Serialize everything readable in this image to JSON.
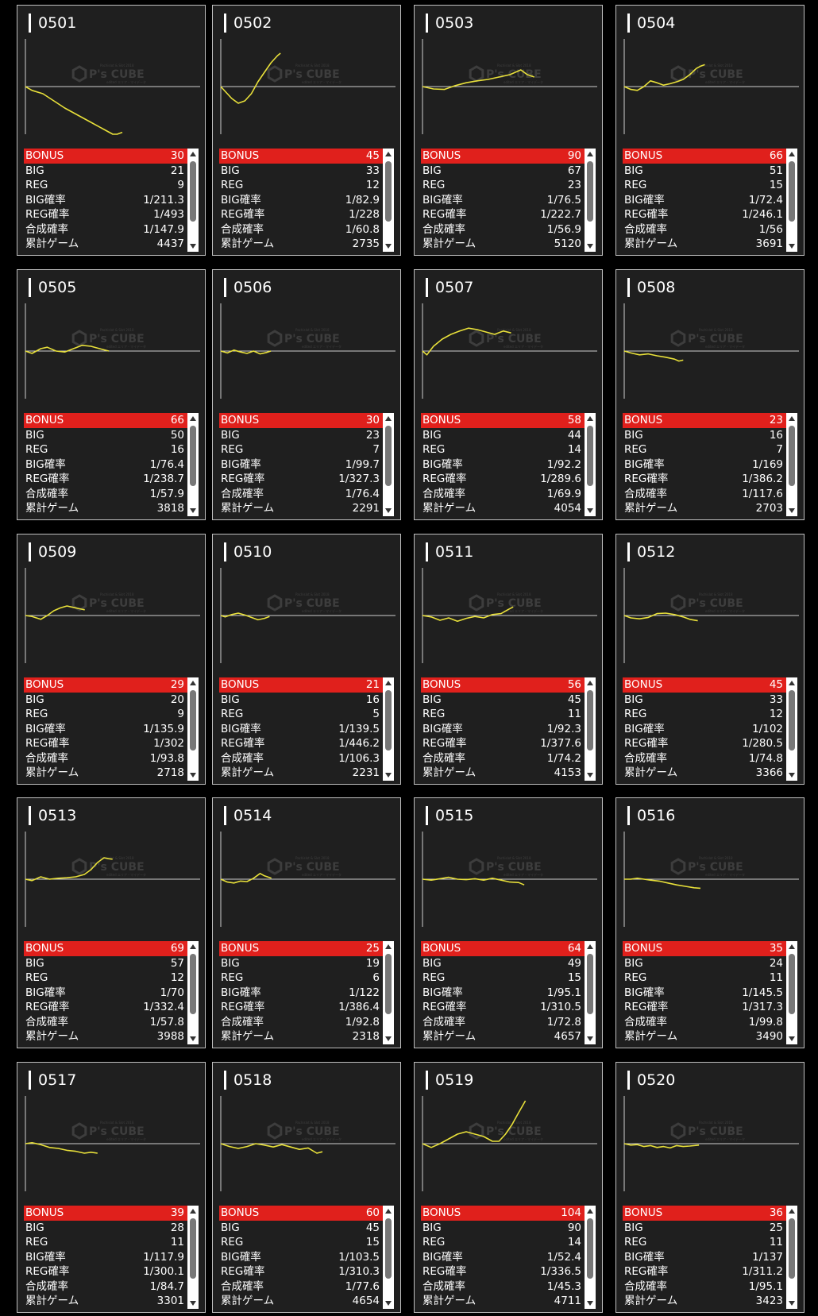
{
  "labels": {
    "bonus": "BONUS",
    "big": "BIG",
    "reg": "REG",
    "big_rate": "BIG確率",
    "reg_rate": "REG確率",
    "combined_rate": "合成確率",
    "total_games": "累計ゲーム"
  },
  "watermark": {
    "brand": "P's CUBE",
    "small_top": "Pachislot & Slot 2018",
    "small_bottom": "edited エリア・マイデータ"
  },
  "colors": {
    "bonus_bar": "#e0201c",
    "graph_line": "#e8e03a",
    "card_bg": "#1f1f1f"
  },
  "machines": [
    {
      "id": "0501",
      "bonus": "30",
      "big": "21",
      "reg": "9",
      "big_rate": "1/211.3",
      "reg_rate": "1/493",
      "combined_rate": "1/147.9",
      "total_games": "4437",
      "graph": [
        [
          0,
          0
        ],
        [
          300,
          -80
        ],
        [
          800,
          -150
        ],
        [
          1300,
          -300
        ],
        [
          1800,
          -450
        ],
        [
          2400,
          -600
        ],
        [
          3000,
          -750
        ],
        [
          3600,
          -900
        ],
        [
          4000,
          -1050
        ],
        [
          4200,
          -1000
        ],
        [
          4437,
          -960
        ]
      ]
    },
    {
      "id": "0502",
      "bonus": "45",
      "big": "33",
      "reg": "12",
      "big_rate": "1/82.9",
      "reg_rate": "1/228",
      "combined_rate": "1/60.8",
      "total_games": "2735",
      "graph": [
        [
          0,
          0
        ],
        [
          200,
          -100
        ],
        [
          500,
          -250
        ],
        [
          800,
          -350
        ],
        [
          1100,
          -300
        ],
        [
          1400,
          -150
        ],
        [
          1700,
          100
        ],
        [
          2000,
          300
        ],
        [
          2300,
          500
        ],
        [
          2600,
          650
        ],
        [
          2735,
          700
        ]
      ]
    },
    {
      "id": "0503",
      "bonus": "90",
      "big": "67",
      "reg": "23",
      "big_rate": "1/76.5",
      "reg_rate": "1/222.7",
      "combined_rate": "1/56.9",
      "total_games": "5120",
      "graph": [
        [
          0,
          0
        ],
        [
          500,
          -50
        ],
        [
          1000,
          -60
        ],
        [
          1500,
          20
        ],
        [
          2000,
          80
        ],
        [
          2500,
          120
        ],
        [
          3000,
          150
        ],
        [
          3500,
          200
        ],
        [
          4000,
          250
        ],
        [
          4500,
          350
        ],
        [
          4800,
          250
        ],
        [
          5120,
          200
        ]
      ]
    },
    {
      "id": "0504",
      "bonus": "66",
      "big": "51",
      "reg": "15",
      "big_rate": "1/72.4",
      "reg_rate": "1/246.1",
      "combined_rate": "1/56",
      "total_games": "3691",
      "graph": [
        [
          0,
          0
        ],
        [
          300,
          -60
        ],
        [
          600,
          -80
        ],
        [
          900,
          0
        ],
        [
          1200,
          120
        ],
        [
          1500,
          80
        ],
        [
          1800,
          30
        ],
        [
          2100,
          60
        ],
        [
          2400,
          100
        ],
        [
          2700,
          150
        ],
        [
          3000,
          250
        ],
        [
          3300,
          380
        ],
        [
          3500,
          430
        ],
        [
          3691,
          460
        ]
      ]
    },
    {
      "id": "0505",
      "bonus": "66",
      "big": "50",
      "reg": "16",
      "big_rate": "1/76.4",
      "reg_rate": "1/238.7",
      "combined_rate": "1/57.9",
      "total_games": "3818",
      "graph": [
        [
          0,
          0
        ],
        [
          300,
          -50
        ],
        [
          700,
          50
        ],
        [
          1000,
          80
        ],
        [
          1400,
          0
        ],
        [
          1800,
          -20
        ],
        [
          2200,
          50
        ],
        [
          2600,
          120
        ],
        [
          3000,
          100
        ],
        [
          3400,
          50
        ],
        [
          3818,
          0
        ]
      ]
    },
    {
      "id": "0506",
      "bonus": "30",
      "big": "23",
      "reg": "7",
      "big_rate": "1/99.7",
      "reg_rate": "1/327.3",
      "combined_rate": "1/76.4",
      "total_games": "2291",
      "graph": [
        [
          0,
          0
        ],
        [
          300,
          -40
        ],
        [
          600,
          20
        ],
        [
          900,
          -20
        ],
        [
          1200,
          -50
        ],
        [
          1500,
          0
        ],
        [
          1800,
          -60
        ],
        [
          2100,
          -30
        ],
        [
          2291,
          0
        ]
      ]
    },
    {
      "id": "0507",
      "bonus": "58",
      "big": "44",
      "reg": "14",
      "big_rate": "1/92.2",
      "reg_rate": "1/289.6",
      "combined_rate": "1/69.9",
      "total_games": "4054",
      "graph": [
        [
          0,
          0
        ],
        [
          200,
          -80
        ],
        [
          500,
          100
        ],
        [
          900,
          250
        ],
        [
          1300,
          350
        ],
        [
          1700,
          420
        ],
        [
          2100,
          480
        ],
        [
          2500,
          450
        ],
        [
          2900,
          400
        ],
        [
          3300,
          350
        ],
        [
          3700,
          420
        ],
        [
          4054,
          380
        ]
      ]
    },
    {
      "id": "0508",
      "bonus": "23",
      "big": "16",
      "reg": "7",
      "big_rate": "1/169",
      "reg_rate": "1/386.2",
      "combined_rate": "1/117.6",
      "total_games": "2703",
      "graph": [
        [
          0,
          0
        ],
        [
          300,
          -40
        ],
        [
          700,
          -80
        ],
        [
          1100,
          -60
        ],
        [
          1500,
          -100
        ],
        [
          1900,
          -130
        ],
        [
          2300,
          -170
        ],
        [
          2500,
          -210
        ],
        [
          2703,
          -190
        ]
      ]
    },
    {
      "id": "0509",
      "bonus": "29",
      "big": "20",
      "reg": "9",
      "big_rate": "1/135.9",
      "reg_rate": "1/302",
      "combined_rate": "1/93.8",
      "total_games": "2718",
      "graph": [
        [
          0,
          0
        ],
        [
          300,
          -20
        ],
        [
          700,
          -80
        ],
        [
          1000,
          0
        ],
        [
          1300,
          100
        ],
        [
          1600,
          160
        ],
        [
          1900,
          200
        ],
        [
          2200,
          170
        ],
        [
          2500,
          140
        ],
        [
          2718,
          120
        ]
      ]
    },
    {
      "id": "0510",
      "bonus": "21",
      "big": "16",
      "reg": "5",
      "big_rate": "1/139.5",
      "reg_rate": "1/446.2",
      "combined_rate": "1/106.3",
      "total_games": "2231",
      "graph": [
        [
          0,
          0
        ],
        [
          200,
          -30
        ],
        [
          500,
          20
        ],
        [
          800,
          50
        ],
        [
          1100,
          10
        ],
        [
          1400,
          -40
        ],
        [
          1700,
          -90
        ],
        [
          2000,
          -60
        ],
        [
          2231,
          -20
        ]
      ]
    },
    {
      "id": "0511",
      "bonus": "56",
      "big": "45",
      "reg": "11",
      "big_rate": "1/92.3",
      "reg_rate": "1/377.6",
      "combined_rate": "1/74.2",
      "total_games": "4153",
      "graph": [
        [
          0,
          0
        ],
        [
          400,
          -30
        ],
        [
          800,
          -100
        ],
        [
          1200,
          -50
        ],
        [
          1600,
          -120
        ],
        [
          2000,
          -60
        ],
        [
          2400,
          -20
        ],
        [
          2800,
          -50
        ],
        [
          3200,
          20
        ],
        [
          3600,
          40
        ],
        [
          3900,
          120
        ],
        [
          4153,
          180
        ]
      ]
    },
    {
      "id": "0512",
      "bonus": "45",
      "big": "33",
      "reg": "12",
      "big_rate": "1/102",
      "reg_rate": "1/280.5",
      "combined_rate": "1/74.8",
      "total_games": "3366",
      "graph": [
        [
          0,
          0
        ],
        [
          300,
          -50
        ],
        [
          700,
          -70
        ],
        [
          1100,
          -40
        ],
        [
          1500,
          40
        ],
        [
          1900,
          50
        ],
        [
          2300,
          20
        ],
        [
          2700,
          -30
        ],
        [
          3000,
          -80
        ],
        [
          3366,
          -110
        ]
      ]
    },
    {
      "id": "0513",
      "bonus": "69",
      "big": "57",
      "reg": "12",
      "big_rate": "1/70",
      "reg_rate": "1/332.4",
      "combined_rate": "1/57.8",
      "total_games": "3988",
      "graph": [
        [
          0,
          0
        ],
        [
          300,
          -30
        ],
        [
          700,
          50
        ],
        [
          1100,
          0
        ],
        [
          1500,
          20
        ],
        [
          1900,
          30
        ],
        [
          2300,
          50
        ],
        [
          2700,
          100
        ],
        [
          3000,
          200
        ],
        [
          3300,
          350
        ],
        [
          3600,
          450
        ],
        [
          3800,
          430
        ],
        [
          3988,
          420
        ]
      ]
    },
    {
      "id": "0514",
      "bonus": "25",
      "big": "19",
      "reg": "6",
      "big_rate": "1/122",
      "reg_rate": "1/386.4",
      "combined_rate": "1/92.8",
      "total_games": "2318",
      "graph": [
        [
          0,
          0
        ],
        [
          300,
          -60
        ],
        [
          600,
          -80
        ],
        [
          900,
          -40
        ],
        [
          1200,
          -50
        ],
        [
          1500,
          20
        ],
        [
          1800,
          120
        ],
        [
          2000,
          70
        ],
        [
          2318,
          20
        ]
      ]
    },
    {
      "id": "0515",
      "bonus": "64",
      "big": "49",
      "reg": "15",
      "big_rate": "1/95.1",
      "reg_rate": "1/310.5",
      "combined_rate": "1/72.8",
      "total_games": "4657",
      "graph": [
        [
          0,
          0
        ],
        [
          400,
          -20
        ],
        [
          800,
          10
        ],
        [
          1200,
          40
        ],
        [
          1600,
          0
        ],
        [
          2000,
          -10
        ],
        [
          2400,
          10
        ],
        [
          2800,
          -20
        ],
        [
          3200,
          20
        ],
        [
          3600,
          -20
        ],
        [
          4000,
          -60
        ],
        [
          4400,
          -70
        ],
        [
          4657,
          -120
        ]
      ]
    },
    {
      "id": "0516",
      "bonus": "35",
      "big": "24",
      "reg": "11",
      "big_rate": "1/145.5",
      "reg_rate": "1/317.3",
      "combined_rate": "1/99.8",
      "total_games": "3490",
      "graph": [
        [
          0,
          0
        ],
        [
          300,
          0
        ],
        [
          600,
          20
        ],
        [
          900,
          0
        ],
        [
          1200,
          -20
        ],
        [
          1600,
          -40
        ],
        [
          2000,
          -80
        ],
        [
          2400,
          -120
        ],
        [
          2800,
          -150
        ],
        [
          3200,
          -180
        ],
        [
          3490,
          -190
        ]
      ]
    },
    {
      "id": "0517",
      "bonus": "39",
      "big": "28",
      "reg": "11",
      "big_rate": "1/117.9",
      "reg_rate": "1/300.1",
      "combined_rate": "1/84.7",
      "total_games": "3301",
      "graph": [
        [
          0,
          0
        ],
        [
          300,
          20
        ],
        [
          700,
          -20
        ],
        [
          1100,
          -80
        ],
        [
          1500,
          -100
        ],
        [
          1900,
          -140
        ],
        [
          2300,
          -160
        ],
        [
          2700,
          -200
        ],
        [
          3000,
          -180
        ],
        [
          3301,
          -200
        ]
      ]
    },
    {
      "id": "0518",
      "bonus": "60",
      "big": "45",
      "reg": "15",
      "big_rate": "1/103.5",
      "reg_rate": "1/310.3",
      "combined_rate": "1/77.6",
      "total_games": "4654",
      "graph": [
        [
          0,
          0
        ],
        [
          400,
          -60
        ],
        [
          800,
          -100
        ],
        [
          1200,
          -60
        ],
        [
          1600,
          0
        ],
        [
          2000,
          -30
        ],
        [
          2400,
          -70
        ],
        [
          2800,
          -20
        ],
        [
          3200,
          -70
        ],
        [
          3600,
          -120
        ],
        [
          4000,
          -90
        ],
        [
          4400,
          -200
        ],
        [
          4654,
          -170
        ]
      ]
    },
    {
      "id": "0519",
      "bonus": "104",
      "big": "90",
      "reg": "14",
      "big_rate": "1/52.4",
      "reg_rate": "1/336.5",
      "combined_rate": "1/45.3",
      "total_games": "4711",
      "graph": [
        [
          0,
          0
        ],
        [
          400,
          -80
        ],
        [
          800,
          0
        ],
        [
          1200,
          100
        ],
        [
          1600,
          200
        ],
        [
          2000,
          250
        ],
        [
          2400,
          200
        ],
        [
          2800,
          150
        ],
        [
          3200,
          50
        ],
        [
          3500,
          50
        ],
        [
          3800,
          200
        ],
        [
          4100,
          400
        ],
        [
          4400,
          650
        ],
        [
          4711,
          900
        ]
      ]
    },
    {
      "id": "0520",
      "bonus": "36",
      "big": "25",
      "reg": "11",
      "big_rate": "1/137",
      "reg_rate": "1/311.2",
      "combined_rate": "1/95.1",
      "total_games": "3423",
      "graph": [
        [
          0,
          0
        ],
        [
          300,
          -30
        ],
        [
          600,
          -20
        ],
        [
          900,
          -60
        ],
        [
          1200,
          -40
        ],
        [
          1500,
          -80
        ],
        [
          1800,
          -60
        ],
        [
          2100,
          -90
        ],
        [
          2400,
          -40
        ],
        [
          2700,
          -60
        ],
        [
          3000,
          -50
        ],
        [
          3423,
          -30
        ]
      ]
    }
  ]
}
